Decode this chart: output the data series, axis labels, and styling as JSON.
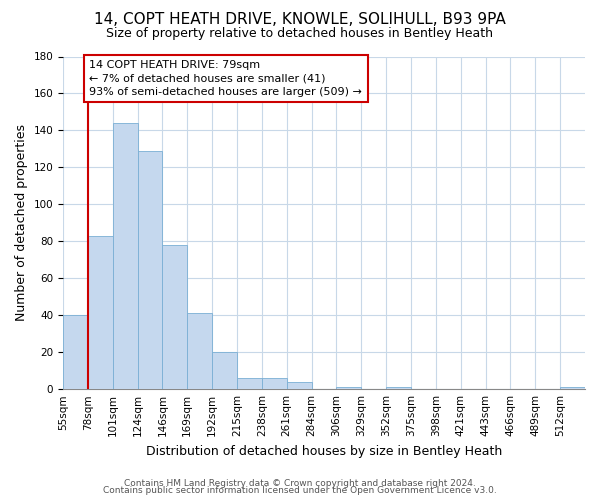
{
  "title": "14, COPT HEATH DRIVE, KNOWLE, SOLIHULL, B93 9PA",
  "subtitle": "Size of property relative to detached houses in Bentley Heath",
  "xlabel": "Distribution of detached houses by size in Bentley Heath",
  "ylabel": "Number of detached properties",
  "bin_labels": [
    "55sqm",
    "78sqm",
    "101sqm",
    "124sqm",
    "146sqm",
    "169sqm",
    "192sqm",
    "215sqm",
    "238sqm",
    "261sqm",
    "284sqm",
    "306sqm",
    "329sqm",
    "352sqm",
    "375sqm",
    "398sqm",
    "421sqm",
    "443sqm",
    "466sqm",
    "489sqm",
    "512sqm"
  ],
  "bar_heights": [
    40,
    83,
    144,
    129,
    78,
    41,
    20,
    6,
    6,
    4,
    0,
    1,
    0,
    1,
    0,
    0,
    0,
    0,
    0,
    0,
    1
  ],
  "bar_color": "#c5d8ee",
  "bar_edge_color": "#7aafd4",
  "property_line_color": "#cc0000",
  "annotation_title": "14 COPT HEATH DRIVE: 79sqm",
  "annotation_line1": "← 7% of detached houses are smaller (41)",
  "annotation_line2": "93% of semi-detached houses are larger (509) →",
  "annotation_box_color": "#ffffff",
  "annotation_box_edge": "#cc0000",
  "ylim": [
    0,
    180
  ],
  "yticks": [
    0,
    20,
    40,
    60,
    80,
    100,
    120,
    140,
    160,
    180
  ],
  "footer1": "Contains HM Land Registry data © Crown copyright and database right 2024.",
  "footer2": "Contains public sector information licensed under the Open Government Licence v3.0.",
  "background_color": "#ffffff",
  "grid_color": "#c8d8e8",
  "title_fontsize": 11,
  "subtitle_fontsize": 9,
  "ylabel_fontsize": 9,
  "xlabel_fontsize": 9,
  "tick_fontsize": 7.5,
  "annotation_fontsize": 8,
  "footer_fontsize": 6.5
}
